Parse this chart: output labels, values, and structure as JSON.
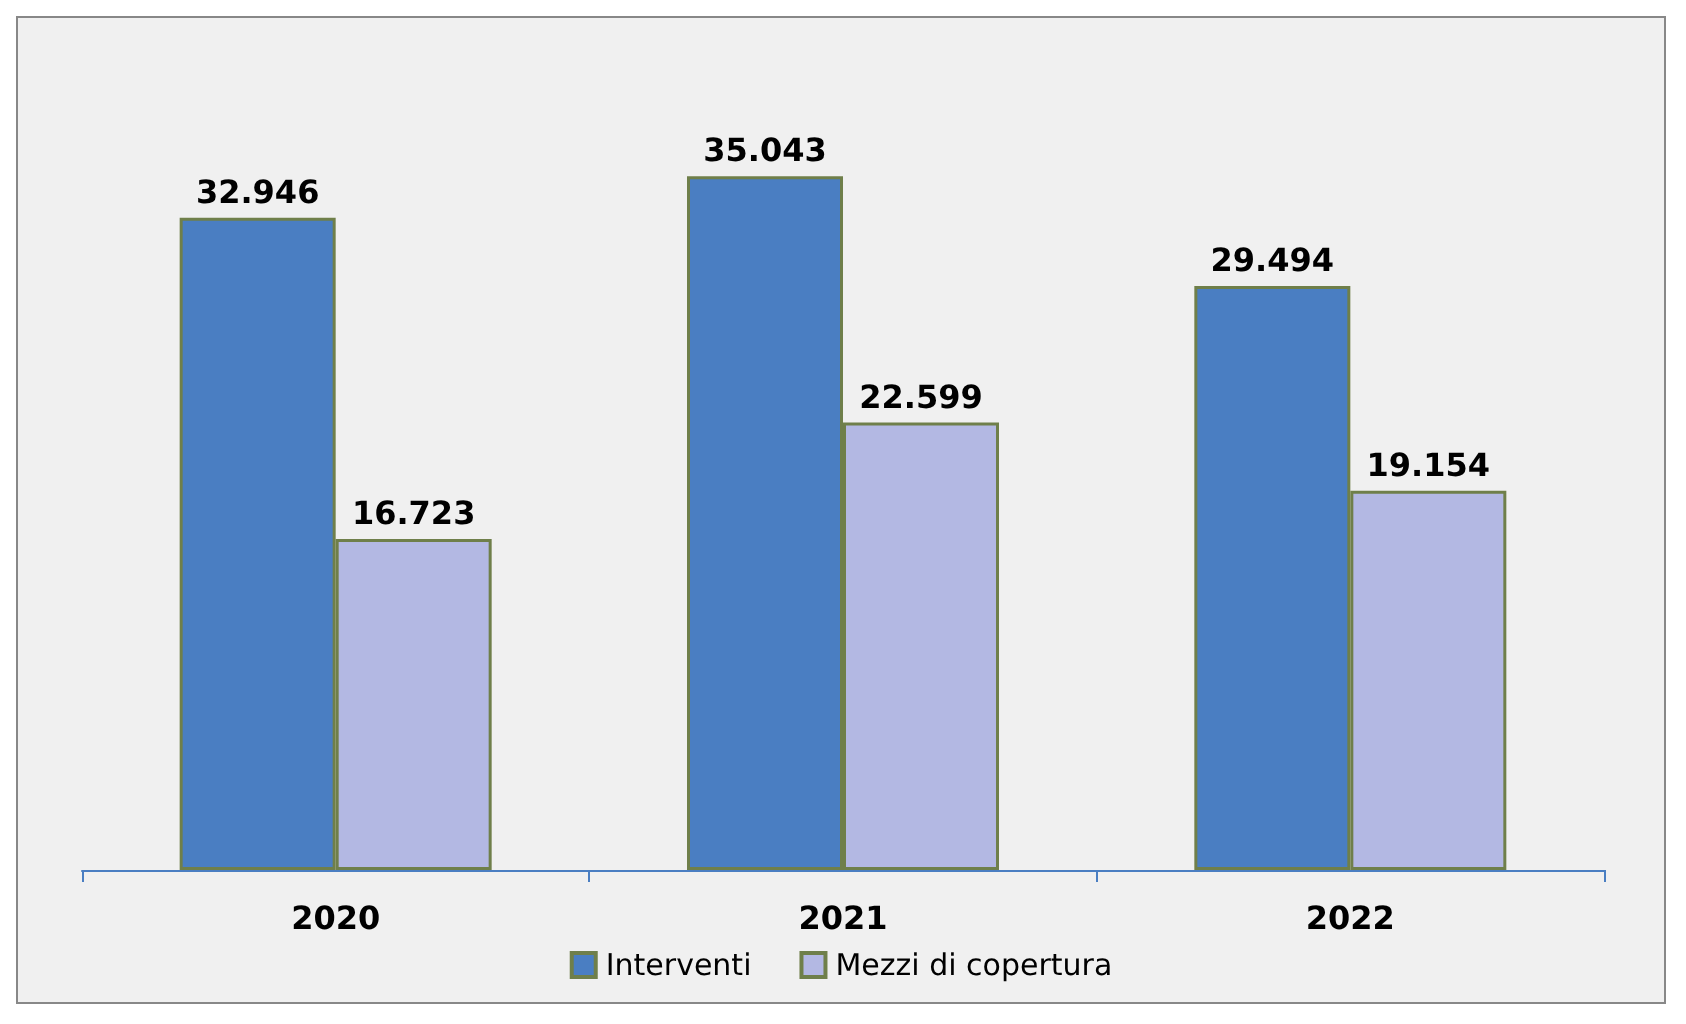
{
  "chart_data": {
    "type": "bar",
    "categories": [
      "2020",
      "2021",
      "2022"
    ],
    "series": [
      {
        "name": "Interventi",
        "color": "#4a7ec2",
        "values": [
          32.946,
          35.043,
          29.494
        ]
      },
      {
        "name": "Mezzi di copertura",
        "color": "#b3b8e3",
        "values": [
          16.723,
          22.599,
          19.154
        ]
      }
    ],
    "data_labels": true,
    "legend": "bottom"
  }
}
